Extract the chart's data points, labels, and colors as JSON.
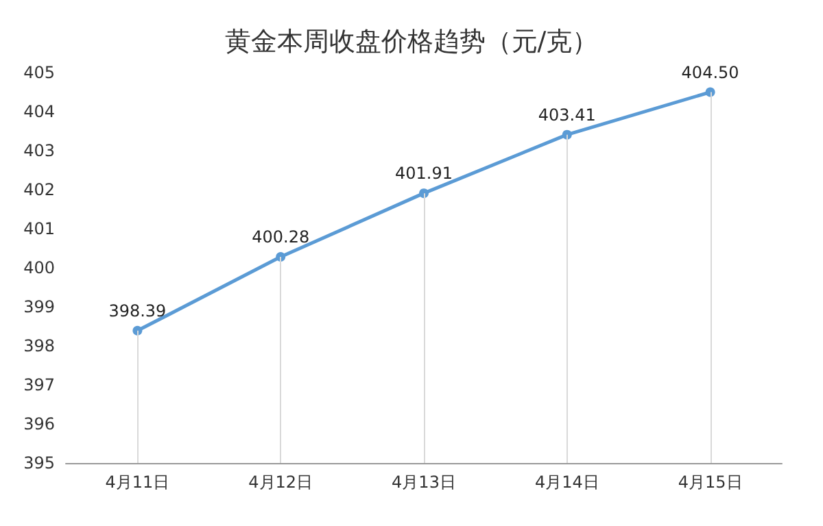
{
  "chart_data": {
    "type": "line",
    "title": "黄金本周收盘价格趋势（元/克）",
    "categories": [
      "4月11日",
      "4月12日",
      "4月13日",
      "4月14日",
      "4月15日"
    ],
    "series": [
      {
        "color": "#5b9bd5",
        "values": [
          398.39,
          400.28,
          401.91,
          403.41,
          404.5
        ],
        "value_labels": [
          "398.39",
          "400.28",
          "401.91",
          "403.41",
          "404.50"
        ]
      }
    ],
    "ylim": [
      395,
      405
    ],
    "yticks": [
      395,
      396,
      397,
      398,
      399,
      400,
      401,
      402,
      403,
      404,
      405
    ],
    "grid": "x",
    "marker": "circle",
    "line_style": "solid"
  }
}
